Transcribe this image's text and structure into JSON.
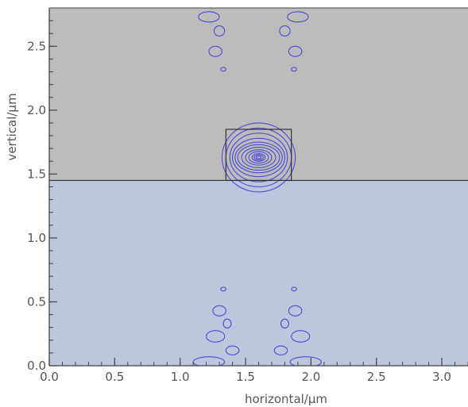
{
  "chart_data": {
    "type": "contour",
    "xlabel": "horizontal/μm",
    "ylabel": "vertical/μm",
    "xlim": [
      0.0,
      3.2
    ],
    "ylim": [
      0.0,
      2.8
    ],
    "x_ticks": [
      0.0,
      0.5,
      1.0,
      1.5,
      2.0,
      2.5,
      3.0
    ],
    "x_tick_labels": [
      "0.0",
      "0.5",
      "1.0",
      "1.5",
      "2.0",
      "2.5",
      "3.0"
    ],
    "y_ticks": [
      0.0,
      0.5,
      1.0,
      1.5,
      2.0,
      2.5
    ],
    "y_tick_labels": [
      "0.0",
      "0.5",
      "1.0",
      "1.5",
      "2.0",
      "2.5"
    ],
    "grid": false,
    "regions": [
      {
        "name": "upper-cladding",
        "y_range": [
          1.45,
          2.8
        ],
        "color": "#bcbcbc"
      },
      {
        "name": "lower-cladding",
        "y_range": [
          0.0,
          1.45
        ],
        "color": "#bcc6dc"
      }
    ],
    "waveguide_core": {
      "x_range": [
        1.35,
        1.85
      ],
      "y_range": [
        1.45,
        1.85
      ]
    },
    "interface_y": 1.45,
    "mode_center": [
      1.6,
      1.63
    ],
    "contour_color": "#4a4ad8",
    "contour_levels": [
      {
        "rx": 0.02,
        "ry": 0.01
      },
      {
        "rx": 0.035,
        "ry": 0.02
      },
      {
        "rx": 0.05,
        "ry": 0.03
      },
      {
        "rx": 0.075,
        "ry": 0.045
      },
      {
        "rx": 0.1,
        "ry": 0.06
      },
      {
        "rx": 0.13,
        "ry": 0.08
      },
      {
        "rx": 0.16,
        "ry": 0.1
      },
      {
        "rx": 0.18,
        "ry": 0.12
      },
      {
        "rx": 0.2,
        "ry": 0.15
      },
      {
        "rx": 0.22,
        "ry": 0.19
      },
      {
        "rx": 0.25,
        "ry": 0.23
      },
      {
        "rx": 0.28,
        "ry": 0.27
      }
    ],
    "side_lobes": [
      {
        "cx": 1.22,
        "cy": 2.73,
        "rx": 0.08,
        "ry": 0.04
      },
      {
        "cx": 1.3,
        "cy": 2.62,
        "rx": 0.04,
        "ry": 0.04
      },
      {
        "cx": 1.27,
        "cy": 2.46,
        "rx": 0.05,
        "ry": 0.04
      },
      {
        "cx": 1.33,
        "cy": 2.32,
        "rx": 0.02,
        "ry": 0.015
      },
      {
        "cx": 1.9,
        "cy": 2.73,
        "rx": 0.08,
        "ry": 0.04
      },
      {
        "cx": 1.8,
        "cy": 2.62,
        "rx": 0.04,
        "ry": 0.04
      },
      {
        "cx": 1.88,
        "cy": 2.46,
        "rx": 0.05,
        "ry": 0.04
      },
      {
        "cx": 1.87,
        "cy": 2.32,
        "rx": 0.02,
        "ry": 0.015
      },
      {
        "cx": 1.33,
        "cy": 0.6,
        "rx": 0.02,
        "ry": 0.015
      },
      {
        "cx": 1.3,
        "cy": 0.43,
        "rx": 0.05,
        "ry": 0.04
      },
      {
        "cx": 1.36,
        "cy": 0.33,
        "rx": 0.03,
        "ry": 0.035
      },
      {
        "cx": 1.27,
        "cy": 0.23,
        "rx": 0.07,
        "ry": 0.045
      },
      {
        "cx": 1.4,
        "cy": 0.12,
        "rx": 0.05,
        "ry": 0.035
      },
      {
        "cx": 1.22,
        "cy": 0.03,
        "rx": 0.12,
        "ry": 0.04
      },
      {
        "cx": 1.87,
        "cy": 0.6,
        "rx": 0.02,
        "ry": 0.015
      },
      {
        "cx": 1.88,
        "cy": 0.43,
        "rx": 0.05,
        "ry": 0.04
      },
      {
        "cx": 1.8,
        "cy": 0.33,
        "rx": 0.03,
        "ry": 0.035
      },
      {
        "cx": 1.92,
        "cy": 0.23,
        "rx": 0.07,
        "ry": 0.045
      },
      {
        "cx": 1.77,
        "cy": 0.12,
        "rx": 0.05,
        "ry": 0.035
      },
      {
        "cx": 1.96,
        "cy": 0.03,
        "rx": 0.12,
        "ry": 0.04
      }
    ]
  }
}
